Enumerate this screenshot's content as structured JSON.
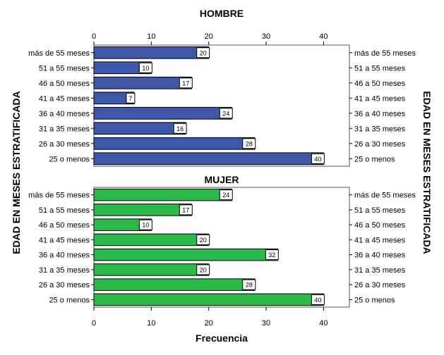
{
  "chart_data": [
    {
      "type": "bar",
      "orientation": "horizontal",
      "title": "HOMBRE",
      "categories": [
        "más de 55 meses",
        "51 a 55 meses",
        "46 a 50 meses",
        "41 a 45 meses",
        "36 a 40 meses",
        "31 a 35 meses",
        "26 a 30 meses",
        "25 o menos"
      ],
      "values": [
        20,
        10,
        17,
        7,
        24,
        16,
        28,
        40
      ],
      "color": "#3F57A8",
      "xlim": [
        0,
        44.5
      ],
      "xticks": [
        0,
        10,
        20,
        30,
        40
      ],
      "data_labels": true
    },
    {
      "type": "bar",
      "orientation": "horizontal",
      "title": "MUJER",
      "categories": [
        "más de 55 meses",
        "51 a 55 meses",
        "46 a 50 meses",
        "41 a 45 meses",
        "36 a 40 meses",
        "31 a 35 meses",
        "26 a 30 meses",
        "25 o menos"
      ],
      "values": [
        24,
        17,
        10,
        20,
        32,
        20,
        28,
        40
      ],
      "color": "#2DB84A",
      "xlim": [
        0,
        44.5
      ],
      "xticks": [
        0,
        10,
        20,
        30,
        40
      ],
      "data_labels": true
    }
  ],
  "xlabel": "Frecuencia",
  "ylabel": "EDAD EN MESES ESTRATIFICADA"
}
